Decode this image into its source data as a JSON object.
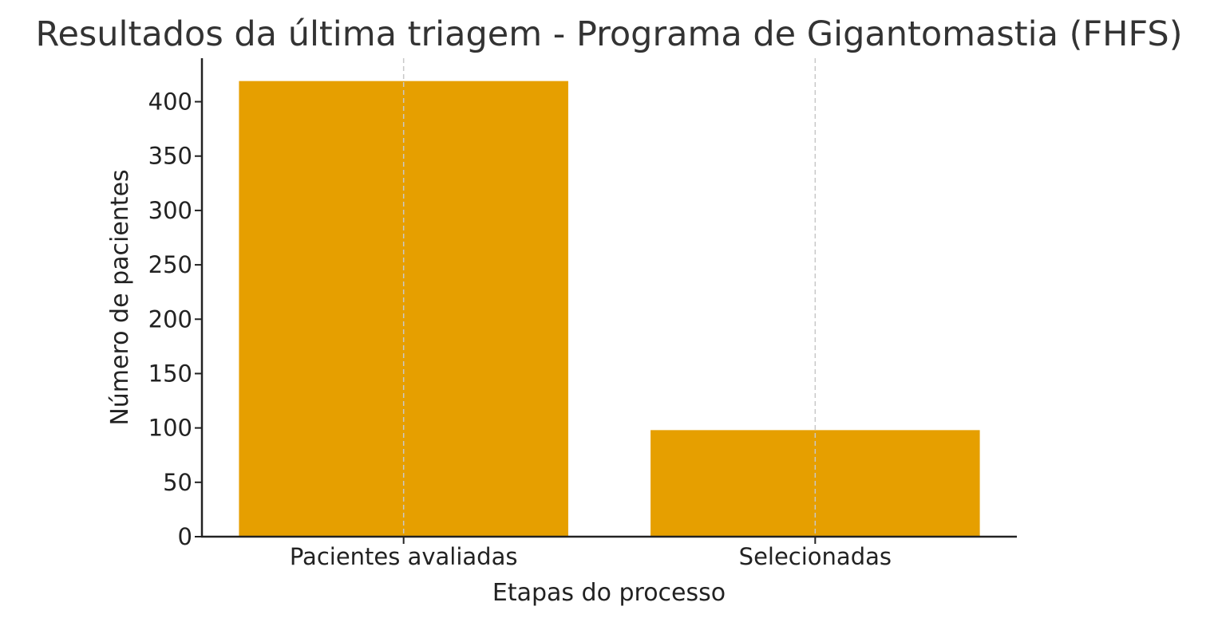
{
  "chart_data": {
    "type": "bar",
    "title": "Resultados da última triagem - Programa de Gigantomastia (FHFS)",
    "xlabel": "Etapas do processo",
    "ylabel": "Número de pacientes",
    "categories": [
      "Pacientes avaliadas",
      "Selecionadas"
    ],
    "values": [
      419,
      98
    ],
    "ylim": [
      0,
      440
    ],
    "yticks": [
      0,
      50,
      100,
      150,
      200,
      250,
      300,
      350,
      400
    ],
    "grid": "x-dashed",
    "bar_color": "#E69F00",
    "legend": "none"
  }
}
